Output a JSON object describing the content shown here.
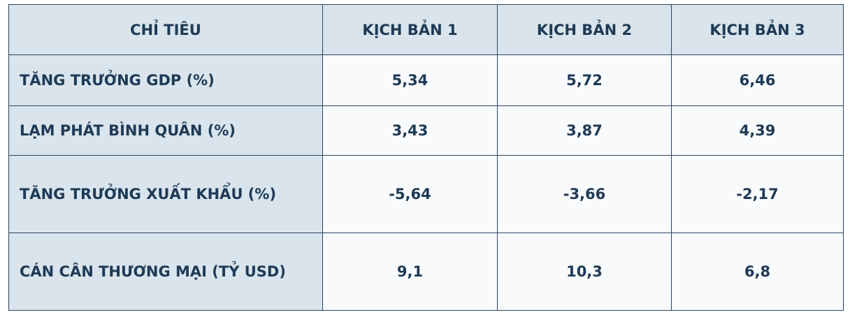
{
  "table": {
    "header": [
      "CHỈ TIÊU",
      "KỊCH BẢN 1",
      "KỊCH BẢN 2",
      "KỊCH BẢN 3"
    ],
    "rows": [
      [
        "TĂNG TRƯỞNG GDP (%)",
        "5,34",
        "5,72",
        "6,46"
      ],
      [
        "LẠM PHÁT BÌNH QUÂN (%)",
        "3,43",
        "3,87",
        "4,39"
      ],
      [
        "TĂNG TRƯỞNG XUẤT KHẨU (%)",
        "-5,64",
        "-3,66",
        "-2,17"
      ],
      [
        "CÁN CÂN THƯƠNG MẠI (TỶ USD)",
        "9,1",
        "10,3",
        "6,8"
      ]
    ]
  }
}
